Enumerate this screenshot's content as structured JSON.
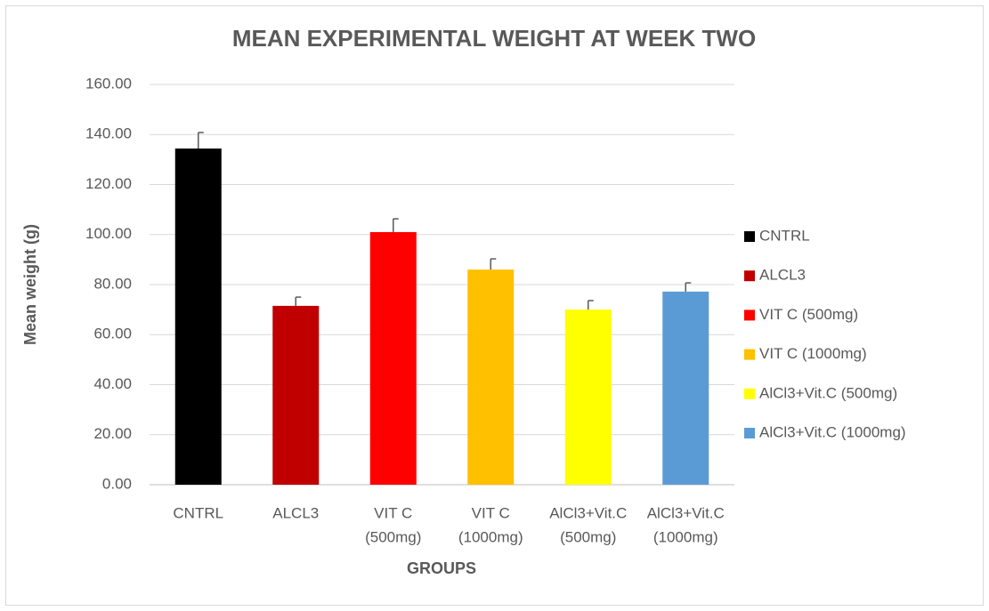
{
  "chart_data": {
    "type": "bar",
    "title": "MEAN EXPERIMENTAL WEIGHT AT WEEK TWO",
    "x_label": "GROUPS",
    "y_label": "Mean weight (g)",
    "categories": [
      [
        "CNTRL"
      ],
      [
        "ALCL3"
      ],
      [
        "VIT C",
        "(500mg)"
      ],
      [
        "VIT C",
        "(1000mg)"
      ],
      [
        "AlCl3+Vit.C",
        "(500mg)"
      ],
      [
        "AlCl3+Vit.C",
        "(1000mg)"
      ]
    ],
    "legend": [
      "CNTRL",
      "ALCL3",
      "VIT C (500mg)",
      "VIT C (1000mg)",
      "AlCl3+Vit.C (500mg)",
      "AlCl3+Vit.C (1000mg)"
    ],
    "values": [
      134.4,
      71.5,
      101.0,
      86.0,
      70.0,
      77.2
    ],
    "errors": [
      6.4,
      3.5,
      5.3,
      4.3,
      3.6,
      3.5
    ],
    "colors": [
      "#000000",
      "#c00000",
      "#ff0000",
      "#ffc000",
      "#ffff00",
      "#5b9bd5"
    ],
    "ylim": [
      0,
      160
    ],
    "yticks": [
      {
        "value": 0,
        "label": "0.00"
      },
      {
        "value": 20,
        "label": "20.00"
      },
      {
        "value": 40,
        "label": "40.00"
      },
      {
        "value": 60,
        "label": "60.00"
      },
      {
        "value": 80,
        "label": "80.00"
      },
      {
        "value": 100,
        "label": "100.00"
      },
      {
        "value": 120,
        "label": "120.00"
      },
      {
        "value": 140,
        "label": "140.00"
      },
      {
        "value": 160,
        "label": "160.00"
      }
    ],
    "grid": true,
    "legend_position": "right"
  }
}
